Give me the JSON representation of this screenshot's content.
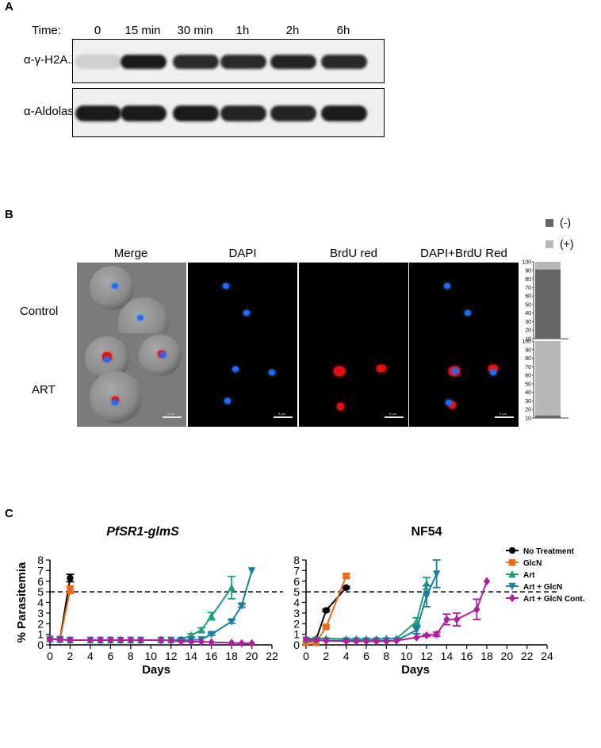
{
  "panel_a": {
    "letter": "A",
    "time_label": "Time:",
    "timepoints": [
      "0",
      "15 min",
      "30 min",
      "1h",
      "2h",
      "6h"
    ],
    "blots": [
      {
        "label": "α-γ-H2A.X",
        "intensities": [
          0.15,
          1.0,
          0.92,
          0.92,
          0.95,
          0.93
        ]
      },
      {
        "label": "α-Aldolase",
        "intensities": [
          1.0,
          1.0,
          1.0,
          0.95,
          0.95,
          1.0
        ]
      }
    ]
  },
  "panel_b": {
    "letter": "B",
    "columns": [
      "Merge",
      "DAPI",
      "BrdU red",
      "DAPI+BrdU Red"
    ],
    "rows": [
      "Control",
      "ART"
    ],
    "scale_text": "5 µm",
    "legend": [
      {
        "label": "(-)",
        "color": "#666666"
      },
      {
        "label": "(+)",
        "color": "#b8b8b8"
      }
    ],
    "bar_ticks": [
      "100",
      "90",
      "80",
      "70",
      "60",
      "50",
      "40",
      "30",
      "20",
      "10"
    ],
    "bars": [
      {
        "row": "Control",
        "negative_top": 91
      },
      {
        "row": "ART",
        "negative_top": 13
      }
    ]
  },
  "panel_c": {
    "letter": "C",
    "ylabel": "% Parasitemia",
    "xlabel": "Days",
    "colors": {
      "No Treatment": "#000000",
      "GlcN": "#ee6a1a",
      "Art": "#1aa37a",
      "Art + GlcN": "#1a7f9e",
      "Art + GlcN Cont.": "#b01ea0"
    },
    "markers": {
      "No Treatment": "circle",
      "GlcN": "square",
      "Art": "triangle-up",
      "Art + GlcN": "triangle-down",
      "Art + GlcN Cont.": "diamond"
    }
  },
  "chart_data": [
    {
      "type": "line",
      "title": "PfSR1-glmS",
      "xlabel": "Days",
      "ylabel": "% Parasitemia",
      "xlim": [
        0,
        22
      ],
      "ylim": [
        0,
        8
      ],
      "xticks": [
        0,
        2,
        4,
        6,
        8,
        10,
        12,
        14,
        16,
        18,
        20,
        22
      ],
      "yticks": [
        0,
        1,
        2,
        3,
        4,
        5,
        6,
        7,
        8
      ],
      "reference_line": 5,
      "series": [
        {
          "name": "No Treatment",
          "x": [
            0,
            1,
            2
          ],
          "y": [
            0.55,
            0.55,
            6.3
          ],
          "err": [
            0.05,
            0.05,
            0.35
          ]
        },
        {
          "name": "GlcN",
          "x": [
            0,
            1,
            2
          ],
          "y": [
            0.55,
            0.55,
            5.2
          ],
          "err": [
            0.05,
            0.05,
            0.35
          ]
        },
        {
          "name": "Art",
          "x": [
            0,
            1,
            2,
            4,
            5,
            6,
            7,
            8,
            9,
            11,
            12,
            13,
            14,
            15,
            16,
            18
          ],
          "y": [
            0.55,
            0.5,
            0.45,
            0.45,
            0.45,
            0.45,
            0.45,
            0.45,
            0.45,
            0.45,
            0.45,
            0.5,
            0.9,
            1.4,
            2.7,
            5.4
          ],
          "err": [
            0.05,
            0.05,
            0.05,
            0.05,
            0.05,
            0.05,
            0.05,
            0.05,
            0.05,
            0.05,
            0.05,
            0.1,
            0.15,
            0.2,
            0.35,
            1.05
          ]
        },
        {
          "name": "Art + GlcN",
          "x": [
            0,
            1,
            2,
            4,
            5,
            6,
            7,
            8,
            9,
            11,
            12,
            13,
            14,
            15,
            16,
            18,
            19,
            20
          ],
          "y": [
            0.55,
            0.5,
            0.45,
            0.45,
            0.45,
            0.45,
            0.45,
            0.45,
            0.45,
            0.45,
            0.45,
            0.45,
            0.45,
            0.5,
            1.0,
            2.2,
            3.7,
            7.0
          ],
          "err": [
            0.05,
            0.05,
            0.05,
            0.05,
            0.05,
            0.05,
            0.05,
            0.05,
            0.05,
            0.05,
            0.05,
            0.05,
            0.05,
            0.05,
            0.1,
            0.15,
            0.15,
            0.05
          ]
        },
        {
          "name": "Art + GlcN Cont.",
          "x": [
            0,
            1,
            2,
            4,
            5,
            6,
            7,
            8,
            9,
            11,
            12,
            13,
            14,
            15,
            16,
            18,
            19,
            20
          ],
          "y": [
            0.55,
            0.5,
            0.45,
            0.45,
            0.45,
            0.45,
            0.45,
            0.45,
            0.45,
            0.45,
            0.4,
            0.35,
            0.3,
            0.3,
            0.25,
            0.2,
            0.15,
            0.15
          ],
          "err": [
            0.05,
            0.05,
            0.05,
            0.05,
            0.05,
            0.05,
            0.05,
            0.05,
            0.05,
            0.05,
            0.05,
            0.05,
            0.05,
            0.05,
            0.05,
            0.05,
            0.05,
            0.05
          ]
        }
      ]
    },
    {
      "type": "line",
      "title": "NF54",
      "xlabel": "Days",
      "ylabel": "% Parasitemia",
      "xlim": [
        0,
        24
      ],
      "ylim": [
        0,
        8
      ],
      "xticks": [
        0,
        2,
        4,
        6,
        8,
        10,
        12,
        14,
        16,
        18,
        20,
        22,
        24
      ],
      "yticks": [
        0,
        1,
        2,
        3,
        4,
        5,
        6,
        7,
        8
      ],
      "reference_line": 5,
      "series": [
        {
          "name": "No Treatment",
          "x": [
            0,
            1,
            2,
            4
          ],
          "y": [
            0.3,
            0.5,
            3.25,
            5.4
          ],
          "err": [
            0.05,
            0.05,
            0.1,
            0.1
          ]
        },
        {
          "name": "GlcN",
          "x": [
            0,
            1,
            2,
            4
          ],
          "y": [
            0.2,
            0.2,
            1.7,
            6.5
          ],
          "err": [
            0.05,
            0.05,
            0.1,
            0.15
          ]
        },
        {
          "name": "Art",
          "x": [
            0,
            1,
            2,
            4,
            5,
            6,
            7,
            8,
            9,
            11,
            12
          ],
          "y": [
            0.6,
            0.6,
            0.6,
            0.55,
            0.55,
            0.55,
            0.55,
            0.6,
            0.6,
            2.2,
            5.8
          ],
          "err": [
            0.05,
            0.05,
            0.05,
            0.05,
            0.05,
            0.05,
            0.05,
            0.05,
            0.05,
            0.35,
            0.55
          ]
        },
        {
          "name": "Art + GlcN",
          "x": [
            0,
            1,
            2,
            4,
            5,
            6,
            7,
            8,
            9,
            11,
            12,
            13
          ],
          "y": [
            0.45,
            0.45,
            0.4,
            0.4,
            0.4,
            0.4,
            0.4,
            0.4,
            0.4,
            1.4,
            4.6,
            6.7
          ],
          "err": [
            0.05,
            0.05,
            0.05,
            0.05,
            0.05,
            0.05,
            0.05,
            0.05,
            0.05,
            0.35,
            1.0,
            1.3
          ]
        },
        {
          "name": "Art + GlcN Cont.",
          "x": [
            0,
            1,
            2,
            4,
            5,
            6,
            7,
            8,
            9,
            11,
            12,
            13,
            14,
            15,
            17,
            18
          ],
          "y": [
            0.55,
            0.45,
            0.4,
            0.35,
            0.35,
            0.35,
            0.35,
            0.35,
            0.4,
            0.7,
            0.9,
            1.0,
            2.4,
            2.4,
            3.35,
            6.0
          ],
          "err": [
            0.05,
            0.05,
            0.05,
            0.05,
            0.05,
            0.05,
            0.05,
            0.05,
            0.05,
            0.05,
            0.1,
            0.2,
            0.5,
            0.6,
            0.95,
            0.05
          ]
        }
      ],
      "legend": [
        "No Treatment",
        "GlcN",
        "Art",
        "Art + GlcN",
        "Art + GlcN Cont."
      ]
    }
  ]
}
